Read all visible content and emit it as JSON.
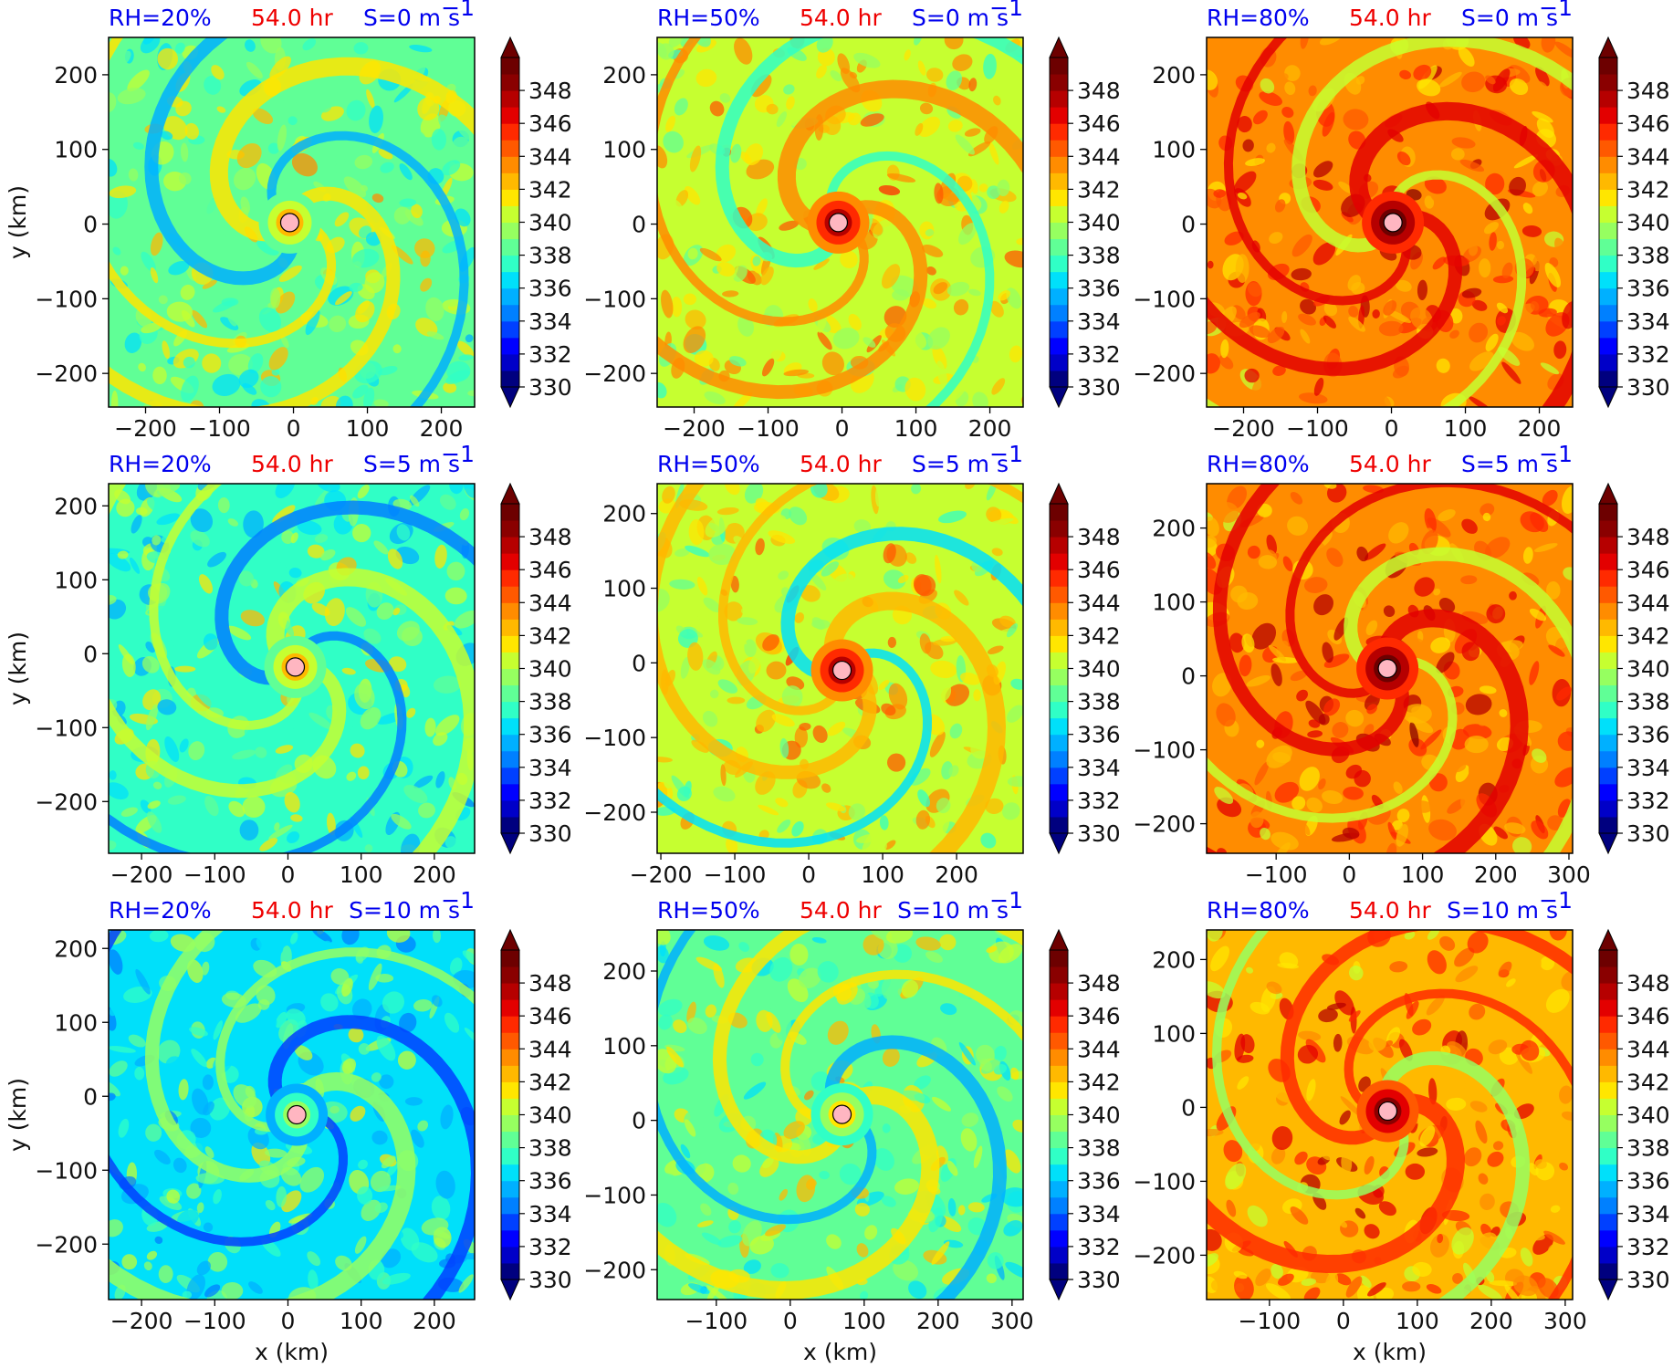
{
  "chart_data": {
    "type": "heatmap",
    "layout": "3x3 grid of filled-contour panels",
    "time_label": "54.0 hr",
    "colors": {
      "title_blue": "#0000ee",
      "title_red": "#ee0000",
      "center_marker": "#ffb6c1"
    },
    "colorbar": {
      "levels_min": 330,
      "levels_max": 350,
      "level_step": 1,
      "extend": "both",
      "ticks": [
        "330",
        "332",
        "334",
        "336",
        "338",
        "340",
        "342",
        "344",
        "346",
        "348"
      ],
      "colormap": [
        "#00007f",
        "#0000c8",
        "#0000ff",
        "#0040ff",
        "#0080ff",
        "#00b0ff",
        "#00e0fa",
        "#30ffc6",
        "#60ff96",
        "#96ff60",
        "#c6ff30",
        "#ffe600",
        "#ffb900",
        "#ff8c00",
        "#ff5900",
        "#ff2a00",
        "#e30000",
        "#b60000",
        "#8a0000",
        "#6d0000"
      ]
    },
    "panels": [
      {
        "rh": "RH=20%",
        "time": "54.0 hr",
        "shear": "S=0 m s",
        "shear_sup": "−1",
        "xlim": [
          -250,
          245
        ],
        "ylim": [
          -245,
          250
        ],
        "xticks": [
          "−200",
          "−100",
          "0",
          "100",
          "200"
        ],
        "yticks": [
          "200",
          "100",
          "0",
          "−100",
          "−200"
        ],
        "center": [
          -5,
          2
        ],
        "mean_level": 0.42,
        "eye_level": 0.6
      },
      {
        "rh": "RH=50%",
        "time": "54.0 hr",
        "shear": "S=0 m s",
        "shear_sup": "−1",
        "xlim": [
          -250,
          245
        ],
        "ylim": [
          -245,
          250
        ],
        "xticks": [
          "−200",
          "−100",
          "0",
          "100",
          "200"
        ],
        "yticks": [
          "200",
          "100",
          "0",
          "−100",
          "−200"
        ],
        "center": [
          -5,
          2
        ],
        "mean_level": 0.52,
        "eye_level": 0.85
      },
      {
        "rh": "RH=80%",
        "time": "54.0 hr",
        "shear": "S=0 m s",
        "shear_sup": "−1",
        "xlim": [
          -250,
          245
        ],
        "ylim": [
          -245,
          250
        ],
        "xticks": [
          "−200",
          "−100",
          "0",
          "100",
          "200"
        ],
        "yticks": [
          "200",
          "100",
          "0",
          "−100",
          "−200"
        ],
        "center": [
          2,
          2
        ],
        "mean_level": 0.66,
        "eye_level": 0.97
      },
      {
        "rh": "RH=20%",
        "time": "54.0 hr",
        "shear": "S=5 m s",
        "shear_sup": "−1",
        "xlim": [
          -245,
          255
        ],
        "ylim": [
          -270,
          230
        ],
        "xticks": [
          "−200",
          "−100",
          "0",
          "100",
          "200"
        ],
        "yticks": [
          "200",
          "100",
          "0",
          "−100",
          "−200"
        ],
        "center": [
          10,
          -18
        ],
        "mean_level": 0.38,
        "eye_level": 0.6
      },
      {
        "rh": "RH=50%",
        "time": "54.0 hr",
        "shear": "S=5 m s",
        "shear_sup": "−1",
        "xlim": [
          -205,
          290
        ],
        "ylim": [
          -255,
          240
        ],
        "xticks": [
          "−200",
          "−100",
          "0",
          "100",
          "200"
        ],
        "yticks": [
          "200",
          "100",
          "0",
          "−100",
          "−200"
        ],
        "center": [
          45,
          -10
        ],
        "mean_level": 0.5,
        "eye_level": 0.85
      },
      {
        "rh": "RH=80%",
        "time": "54.0 hr",
        "shear": "S=5 m s",
        "shear_sup": "−1",
        "xlim": [
          -195,
          305
        ],
        "ylim": [
          -240,
          260
        ],
        "xticks": [
          "−100",
          "0",
          "100",
          "200",
          "300"
        ],
        "yticks": [
          "200",
          "100",
          "0",
          "−100",
          "−200"
        ],
        "center": [
          52,
          10
        ],
        "mean_level": 0.66,
        "eye_level": 0.97
      },
      {
        "rh": "RH=20%",
        "time": "54.0 hr",
        "shear": "S=10 m s",
        "shear_sup": "−1",
        "xlim": [
          -245,
          255
        ],
        "ylim": [
          -275,
          225
        ],
        "xticks": [
          "−200",
          "−100",
          "0",
          "100",
          "200"
        ],
        "yticks": [
          "200",
          "100",
          "0",
          "−100",
          "−200"
        ],
        "center": [
          12,
          -25
        ],
        "mean_level": 0.34,
        "eye_level": 0.45
      },
      {
        "rh": "RH=50%",
        "time": "54.0 hr",
        "shear": "S=10 m s",
        "shear_sup": "−1",
        "xlim": [
          -180,
          315
        ],
        "ylim": [
          -240,
          255
        ],
        "xticks": [
          "−100",
          "0",
          "100",
          "200",
          "300"
        ],
        "yticks": [
          "200",
          "100",
          "0",
          "−100",
          "−200"
        ],
        "center": [
          70,
          8
        ],
        "mean_level": 0.42,
        "eye_level": 0.55
      },
      {
        "rh": "RH=80%",
        "time": "54.0 hr",
        "shear": "S=10 m s",
        "shear_sup": "−1",
        "xlim": [
          -185,
          310
        ],
        "ylim": [
          -260,
          240
        ],
        "xticks": [
          "−100",
          "0",
          "100",
          "200",
          "300"
        ],
        "yticks": [
          "200",
          "100",
          "0",
          "−100",
          "−200"
        ],
        "center": [
          60,
          -5
        ],
        "mean_level": 0.64,
        "eye_level": 0.92
      }
    ],
    "ylabel": "y (km)",
    "xlabel": "x (km)"
  }
}
